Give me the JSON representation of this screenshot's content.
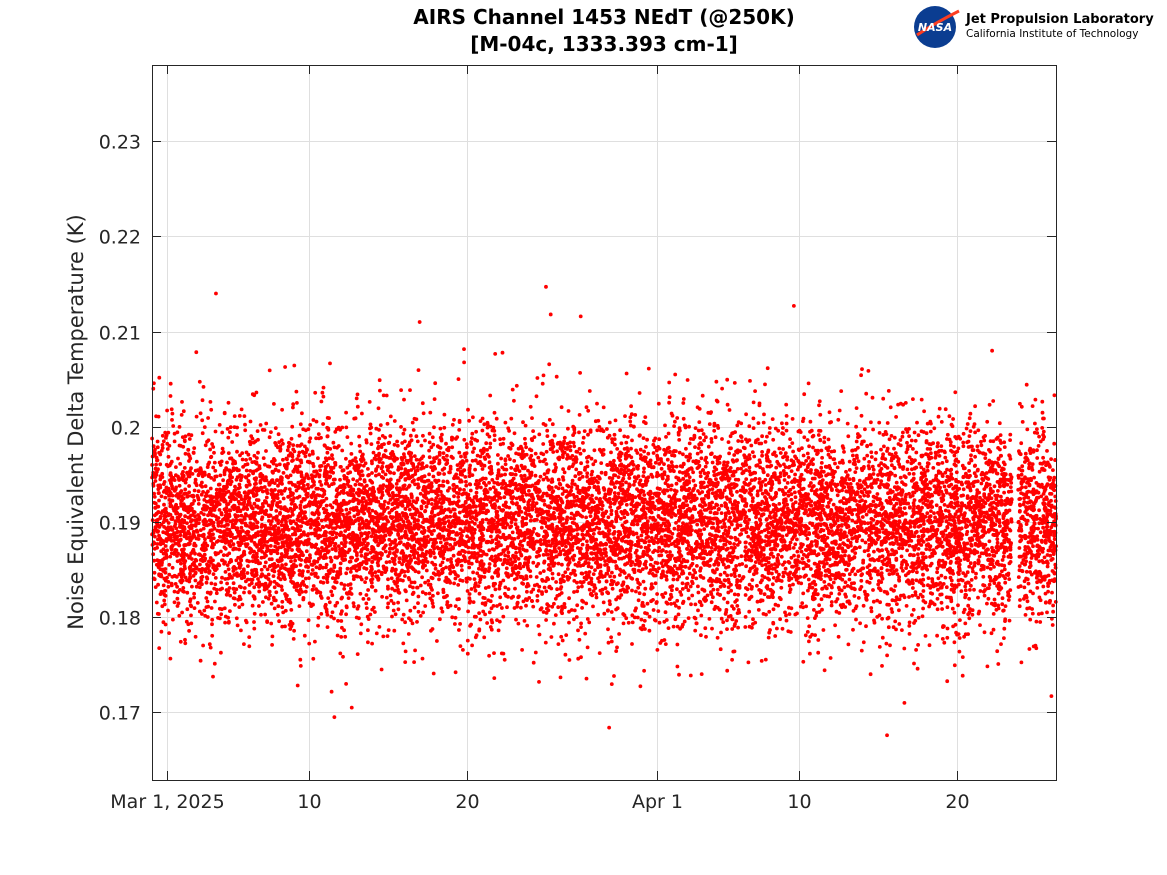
{
  "header": {
    "title_line1": "AIRS Channel 1453 NEdT (@250K)",
    "title_line2": "[M-04c, 1333.393 cm-1]",
    "logo_text": "NASA",
    "org_name": "Jet Propulsion Laboratory",
    "org_subtitle": "California Institute of Technology"
  },
  "chart_data": {
    "type": "scatter",
    "title": "AIRS Channel 1453 NEdT (@250K) [M-04c, 1333.393 cm-1]",
    "xlabel": "",
    "ylabel": "Noise Equivalent Delta Temperature (K)",
    "x_unit": "days since Mar 1, 2025",
    "xlim": [
      -0.95,
      56.3
    ],
    "ylim": [
      0.1629,
      0.238
    ],
    "grid": true,
    "marker_color": "#ff0000",
    "x_ticks": [
      {
        "value": 0,
        "label": "Mar 1, 2025"
      },
      {
        "value": 9,
        "label": "10"
      },
      {
        "value": 19,
        "label": "20"
      },
      {
        "value": 31,
        "label": "Apr 1"
      },
      {
        "value": 40,
        "label": "10"
      },
      {
        "value": 50,
        "label": "20"
      }
    ],
    "y_ticks": [
      {
        "value": 0.17,
        "label": "0.17"
      },
      {
        "value": 0.18,
        "label": "0.18"
      },
      {
        "value": 0.19,
        "label": "0.19"
      },
      {
        "value": 0.2,
        "label": "0.2"
      },
      {
        "value": 0.21,
        "label": "0.21"
      },
      {
        "value": 0.22,
        "label": "0.22"
      },
      {
        "value": 0.23,
        "label": "0.23"
      }
    ],
    "series": [
      {
        "name": "NEdT",
        "distribution": {
          "mean": 0.19,
          "std": 0.0052,
          "points_per_day": 210,
          "x_start": -0.95,
          "x_end": 56.3
        },
        "data_gap": [
          53.5,
          53.9
        ],
        "outliers": [
          {
            "x": 3.1,
            "y": 0.214
          },
          {
            "x": 16.0,
            "y": 0.211
          },
          {
            "x": 24.0,
            "y": 0.2147
          },
          {
            "x": 24.3,
            "y": 0.2118
          },
          {
            "x": 26.2,
            "y": 0.2116
          },
          {
            "x": 39.7,
            "y": 0.2127
          },
          {
            "x": 10.6,
            "y": 0.1695
          },
          {
            "x": 11.7,
            "y": 0.1705
          },
          {
            "x": 28.0,
            "y": 0.1684
          },
          {
            "x": 45.6,
            "y": 0.1676
          },
          {
            "x": 46.7,
            "y": 0.171
          }
        ]
      }
    ]
  }
}
